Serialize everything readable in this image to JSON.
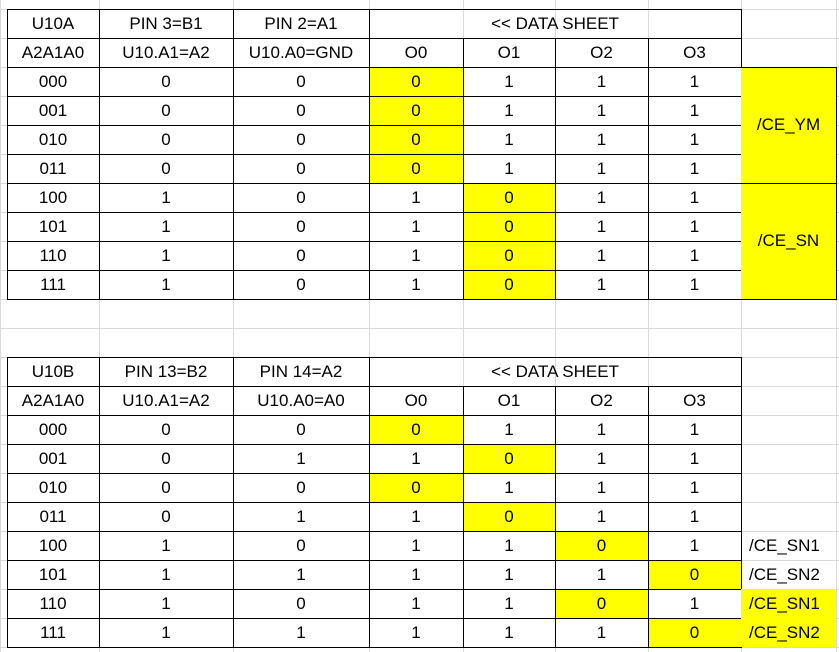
{
  "tables": [
    {
      "header1": [
        "U10A",
        "PIN 3=B1",
        "PIN 2=A1",
        "<< DATA SHEET"
      ],
      "header2": [
        "A2A1A0",
        "U10.A1=A2",
        "U10.A0=GND",
        "O0",
        "O1",
        "O2",
        "O3"
      ],
      "rows": [
        [
          "000",
          "0",
          "0",
          "0",
          "1",
          "1",
          "1"
        ],
        [
          "001",
          "0",
          "0",
          "0",
          "1",
          "1",
          "1"
        ],
        [
          "010",
          "0",
          "0",
          "0",
          "1",
          "1",
          "1"
        ],
        [
          "011",
          "0",
          "0",
          "0",
          "1",
          "1",
          "1"
        ],
        [
          "100",
          "1",
          "0",
          "1",
          "0",
          "1",
          "1"
        ],
        [
          "101",
          "1",
          "0",
          "1",
          "0",
          "1",
          "1"
        ],
        [
          "110",
          "1",
          "0",
          "1",
          "0",
          "1",
          "1"
        ],
        [
          "111",
          "1",
          "0",
          "1",
          "0",
          "1",
          "1"
        ]
      ],
      "highlight": [
        [
          3
        ],
        [
          3
        ],
        [
          3
        ],
        [
          3
        ],
        [
          4
        ],
        [
          4
        ],
        [
          4
        ],
        [
          4
        ]
      ],
      "side_groups": [
        {
          "label": "/CE_YM",
          "start_row": 0,
          "span": 4,
          "highlighted": true
        },
        {
          "label": "/CE_SN",
          "start_row": 4,
          "span": 4,
          "highlighted": true
        }
      ]
    },
    {
      "header1": [
        "U10B",
        "PIN 13=B2",
        "PIN 14=A2",
        "<< DATA SHEET"
      ],
      "header2": [
        "A2A1A0",
        "U10.A1=A2",
        "U10.A0=A0",
        "O0",
        "O1",
        "O2",
        "O3"
      ],
      "rows": [
        [
          "000",
          "0",
          "0",
          "0",
          "1",
          "1",
          "1"
        ],
        [
          "001",
          "0",
          "1",
          "1",
          "0",
          "1",
          "1"
        ],
        [
          "010",
          "0",
          "0",
          "0",
          "1",
          "1",
          "1"
        ],
        [
          "011",
          "0",
          "1",
          "1",
          "0",
          "1",
          "1"
        ],
        [
          "100",
          "1",
          "0",
          "1",
          "1",
          "0",
          "1"
        ],
        [
          "101",
          "1",
          "1",
          "1",
          "1",
          "1",
          "0"
        ],
        [
          "110",
          "1",
          "0",
          "1",
          "1",
          "0",
          "1"
        ],
        [
          "111",
          "1",
          "1",
          "1",
          "1",
          "1",
          "0"
        ]
      ],
      "highlight": [
        [
          3
        ],
        [
          4
        ],
        [
          3
        ],
        [
          4
        ],
        [
          5
        ],
        [
          6
        ],
        [
          5
        ],
        [
          6
        ]
      ],
      "side_labels": [
        {
          "label": "",
          "highlighted": false
        },
        {
          "label": "",
          "highlighted": false
        },
        {
          "label": "",
          "highlighted": false
        },
        {
          "label": "",
          "highlighted": false
        },
        {
          "label": "/CE_SN1",
          "highlighted": false
        },
        {
          "label": "/CE_SN2",
          "highlighted": false
        },
        {
          "label": "/CE_SN1",
          "highlighted": true
        },
        {
          "label": "/CE_SN2",
          "highlighted": true
        }
      ]
    }
  ],
  "colors": {
    "highlight": "#ffff00",
    "gridline": "#d9d9d9",
    "border": "#000000"
  }
}
